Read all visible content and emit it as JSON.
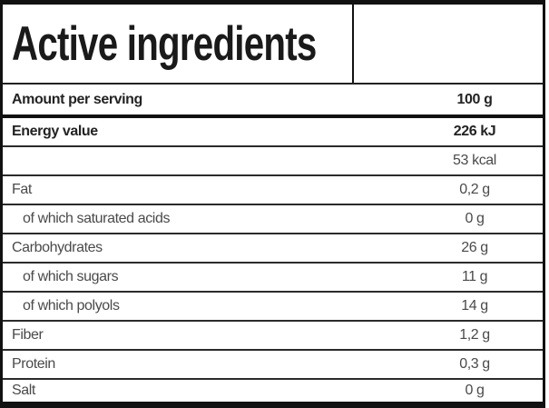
{
  "title": "Active ingredients",
  "table": {
    "header": {
      "label": "Amount per serving",
      "value": "100 g"
    },
    "rows": [
      {
        "label": "Energy value",
        "value": "226 kJ",
        "bold": true,
        "indent": false
      },
      {
        "label": "",
        "value": "53 kcal",
        "bold": false,
        "indent": false
      },
      {
        "label": "Fat",
        "value": "0,2 g",
        "bold": false,
        "indent": false
      },
      {
        "label": "of which saturated acids",
        "value": "0 g",
        "bold": false,
        "indent": true
      },
      {
        "label": "Carbohydrates",
        "value": "26 g",
        "bold": false,
        "indent": false
      },
      {
        "label": "of which sugars",
        "value": "11 g",
        "bold": false,
        "indent": true
      },
      {
        "label": "of which polyols",
        "value": "14 g",
        "bold": false,
        "indent": true
      },
      {
        "label": "Fiber",
        "value": "1,2 g",
        "bold": false,
        "indent": false
      },
      {
        "label": "Protein",
        "value": "0,3 g",
        "bold": false,
        "indent": false
      },
      {
        "label": "Salt",
        "value": "0 g",
        "bold": false,
        "indent": false
      }
    ]
  },
  "colors": {
    "outer_border": "#111111",
    "row_line": "#2b2b2b",
    "title_text": "#1a1a1a",
    "bold_text": "#232323",
    "regular_text": "#4a4a4a",
    "background": "#ffffff"
  }
}
